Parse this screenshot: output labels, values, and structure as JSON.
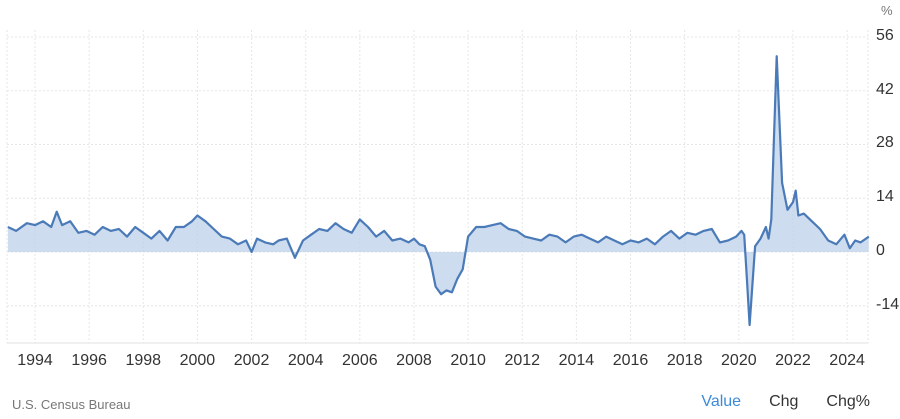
{
  "chart_data": {
    "type": "area",
    "title": "",
    "xlabel": "",
    "ylabel": "%",
    "ylim": [
      -21,
      56
    ],
    "yticks": [
      56,
      42,
      28,
      14,
      0,
      -14
    ],
    "xticks": [
      "1994",
      "1996",
      "1998",
      "2000",
      "2002",
      "2004",
      "2006",
      "2008",
      "2010",
      "2012",
      "2014",
      "2016",
      "2018",
      "2020",
      "2022",
      "2024"
    ],
    "grid": true,
    "series": [
      {
        "name": "Value",
        "color": "#4a7ab8",
        "x": [
          1993.0,
          1993.3,
          1993.7,
          1994.0,
          1994.3,
          1994.6,
          1994.8,
          1995.0,
          1995.3,
          1995.6,
          1995.9,
          1996.2,
          1996.5,
          1996.8,
          1997.1,
          1997.4,
          1997.7,
          1998.0,
          1998.3,
          1998.6,
          1998.9,
          1999.2,
          1999.5,
          1999.8,
          2000.0,
          2000.3,
          2000.6,
          2000.9,
          2001.2,
          2001.5,
          2001.8,
          2002.0,
          2002.2,
          2002.5,
          2002.8,
          2003.0,
          2003.3,
          2003.6,
          2003.9,
          2004.2,
          2004.5,
          2004.8,
          2005.1,
          2005.4,
          2005.7,
          2006.0,
          2006.3,
          2006.6,
          2006.9,
          2007.2,
          2007.5,
          2007.8,
          2008.0,
          2008.2,
          2008.4,
          2008.6,
          2008.8,
          2009.0,
          2009.2,
          2009.4,
          2009.6,
          2009.8,
          2010.0,
          2010.3,
          2010.6,
          2010.9,
          2011.2,
          2011.5,
          2011.8,
          2012.1,
          2012.4,
          2012.7,
          2013.0,
          2013.3,
          2013.6,
          2013.9,
          2014.2,
          2014.5,
          2014.8,
          2015.1,
          2015.4,
          2015.7,
          2016.0,
          2016.3,
          2016.6,
          2016.9,
          2017.2,
          2017.5,
          2017.8,
          2018.1,
          2018.4,
          2018.7,
          2019.0,
          2019.3,
          2019.6,
          2019.9,
          2020.1,
          2020.2,
          2020.3,
          2020.4,
          2020.6,
          2020.8,
          2021.0,
          2021.1,
          2021.2,
          2021.3,
          2021.4,
          2021.6,
          2021.8,
          2022.0,
          2022.1,
          2022.2,
          2022.4,
          2022.7,
          2023.0,
          2023.3,
          2023.6,
          2023.9,
          2024.1,
          2024.3,
          2024.5,
          2024.8
        ],
        "values": [
          6.5,
          5.5,
          7.5,
          7.0,
          8.0,
          6.5,
          10.5,
          7.0,
          8.0,
          5.0,
          5.5,
          4.5,
          6.5,
          5.5,
          6.0,
          4.0,
          6.5,
          5.0,
          3.5,
          5.5,
          3.0,
          6.5,
          6.5,
          8.0,
          9.5,
          8.0,
          6.0,
          4.0,
          3.5,
          2.0,
          3.0,
          0.0,
          3.5,
          2.5,
          2.0,
          3.0,
          3.5,
          -1.5,
          3.0,
          4.5,
          6.0,
          5.5,
          7.5,
          6.0,
          5.0,
          8.5,
          6.5,
          4.0,
          5.5,
          3.0,
          3.5,
          2.5,
          3.5,
          2.0,
          1.5,
          -2.0,
          -9.0,
          -11.0,
          -10.0,
          -10.5,
          -7.0,
          -4.5,
          4.0,
          6.5,
          6.5,
          7.0,
          7.5,
          6.0,
          5.5,
          4.0,
          3.5,
          3.0,
          4.5,
          4.0,
          2.5,
          4.0,
          4.5,
          3.5,
          2.5,
          4.0,
          3.0,
          2.0,
          3.0,
          2.5,
          3.5,
          2.0,
          4.0,
          5.5,
          3.5,
          5.0,
          4.5,
          5.5,
          6.0,
          2.5,
          3.0,
          4.0,
          5.5,
          4.5,
          -7.0,
          -19.0,
          1.5,
          3.5,
          6.5,
          3.5,
          8.5,
          30.0,
          51.0,
          18.0,
          11.0,
          13.0,
          16.0,
          9.5,
          10.0,
          8.0,
          6.0,
          3.0,
          2.0,
          4.5,
          1.0,
          3.0,
          2.5,
          4.0
        ]
      }
    ],
    "legend_position": "none"
  },
  "axis": {
    "unit_label": "%",
    "y_labels": [
      "56",
      "42",
      "28",
      "14",
      "0",
      "-14"
    ],
    "x_labels": [
      "1994",
      "1996",
      "1998",
      "2000",
      "2002",
      "2004",
      "2006",
      "2008",
      "2010",
      "2012",
      "2014",
      "2016",
      "2018",
      "2020",
      "2022",
      "2024"
    ]
  },
  "footer": {
    "source": "U.S. Census Bureau",
    "tabs": [
      {
        "label": "Value",
        "active": true
      },
      {
        "label": "Chg",
        "active": false
      },
      {
        "label": "Chg%",
        "active": false
      }
    ]
  },
  "colors": {
    "line": "#4a7ab8",
    "fill_top": "#bcd0e8",
    "active_tab": "#3d8ad8",
    "grid": "#e6e6e6"
  }
}
